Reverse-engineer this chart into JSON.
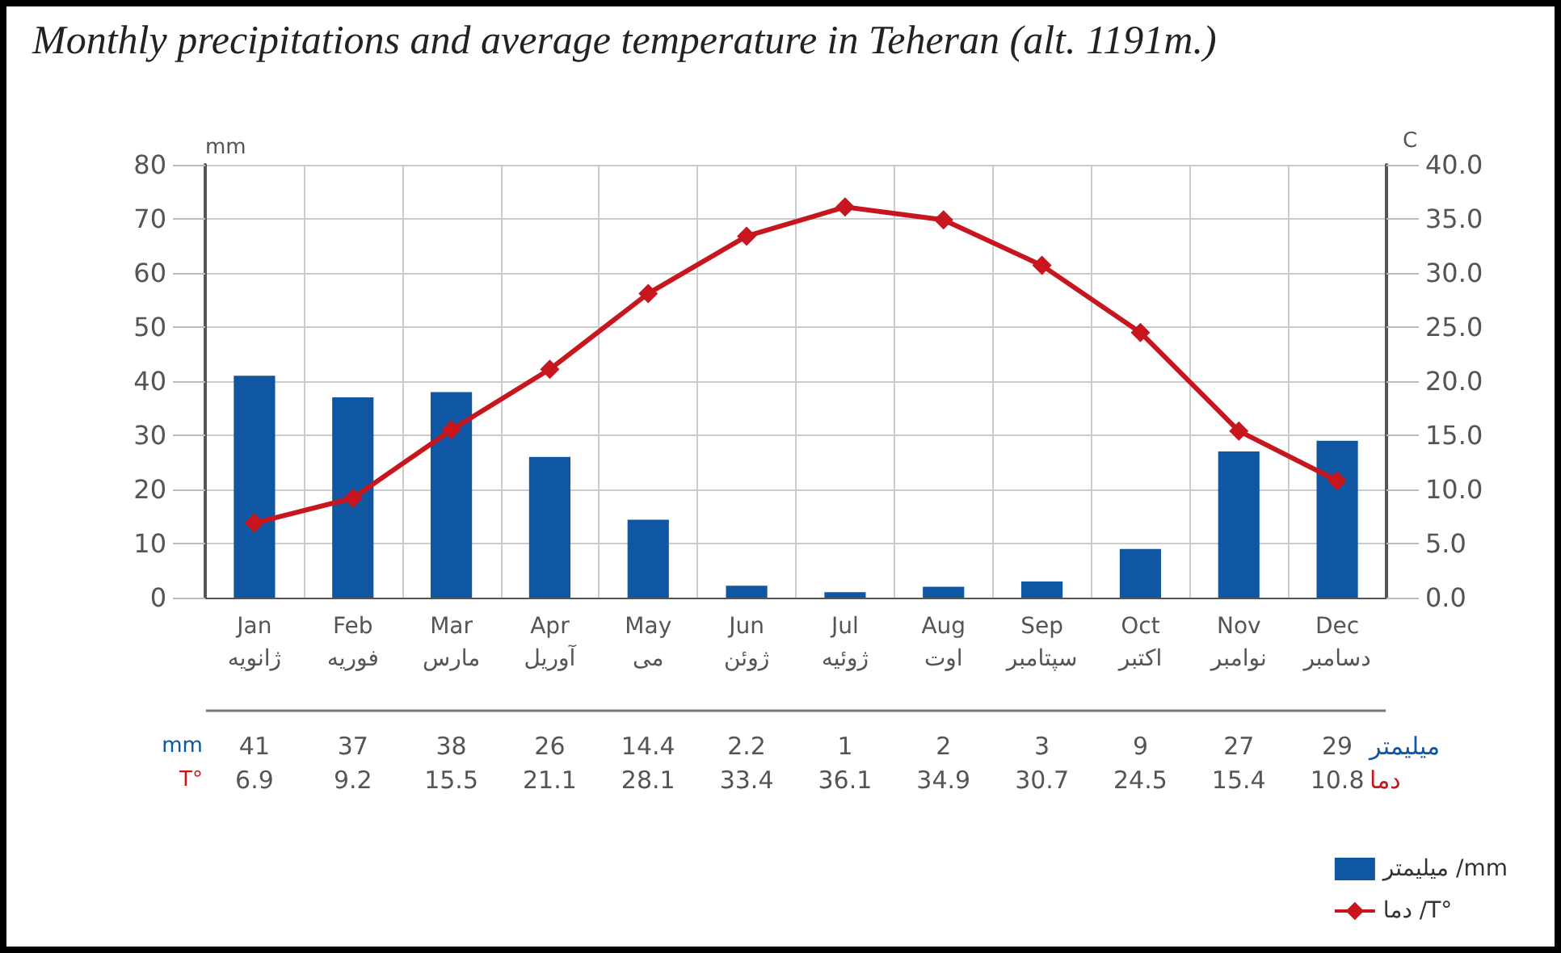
{
  "chart_data": {
    "type": "bar",
    "title": "Monthly precipitations and average temperature in Teheran (alt. 1191m.)",
    "ylabel": "mm",
    "y2label": "C",
    "categories": [
      "Jan\nژانویه",
      "Feb\nفوریه",
      "Mar\nمارس",
      "Apr\nآوریل",
      "May\nمی",
      "Jun\nژوئن",
      "Jul\nژوئیه",
      "Aug\nاوت",
      "Sep\nسپتامبر",
      "Oct\nاکتبر",
      "Nov\nنوامبر",
      "Dec\nدسامبر"
    ],
    "series": [
      {
        "name": "میلیمتر /mm",
        "color": "#0f56a3",
        "values": [
          41,
          37,
          38,
          26,
          14.4,
          2.2,
          1,
          2,
          3,
          9,
          27,
          29
        ]
      },
      {
        "name": "دما /T°",
        "type": "line",
        "axis": "y2",
        "color": "#c8161e",
        "marker": "diamond",
        "line_style": "solid",
        "values": [
          6.9,
          9.2,
          15.5,
          21.1,
          28.1,
          33.4,
          36.1,
          34.9,
          30.7,
          24.5,
          15.4,
          10.8
        ]
      }
    ],
    "annotations": [
      "mm",
      "میلیمتر",
      "T°",
      "دما"
    ],
    "ylim": [
      0,
      80
    ],
    "yticks": [
      0,
      10,
      20,
      30,
      40,
      50,
      60,
      70,
      80
    ],
    "y2lim": [
      0,
      40
    ],
    "y2ticks": [
      {
        "value": 0,
        "label": "0.0"
      },
      {
        "value": 5,
        "label": "5.0"
      },
      {
        "value": 10,
        "label": "10.0"
      },
      {
        "value": 15,
        "label": "15.0"
      },
      {
        "value": 20,
        "label": "20.0"
      },
      {
        "value": 25,
        "label": "25.0"
      },
      {
        "value": 30,
        "label": "30.0"
      },
      {
        "value": 35,
        "label": "35.0"
      },
      {
        "value": 40,
        "label": "40.0"
      }
    ],
    "grid": true,
    "legend": "bottom right",
    "data_labels": true
  }
}
